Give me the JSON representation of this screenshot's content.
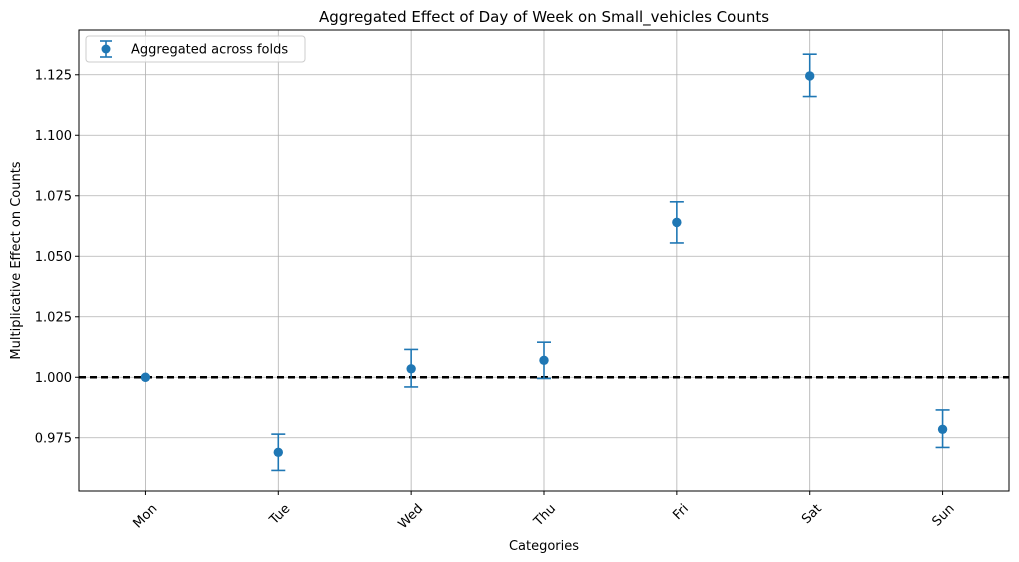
{
  "chart_data": {
    "type": "scatter",
    "title": "Aggregated Effect of Day of Week on Small_vehicles Counts",
    "xlabel": "Categories",
    "ylabel": "Multiplicative Effect on Counts",
    "categories": [
      "Mon",
      "Tue",
      "Wed",
      "Thu",
      "Fri",
      "Sat",
      "Sun"
    ],
    "series": [
      {
        "name": "Aggregated across folds",
        "values": [
          1.0,
          0.969,
          1.0035,
          1.007,
          1.064,
          1.1245,
          0.9785
        ],
        "error_low": [
          1.0,
          0.9615,
          0.996,
          0.9995,
          1.0555,
          1.116,
          0.971
        ],
        "error_high": [
          1.0,
          0.9765,
          1.0115,
          1.0145,
          1.0725,
          1.1335,
          0.9865
        ],
        "color": "#1f77b4"
      }
    ],
    "reference_line": {
      "y": 1.0,
      "style": "dashed",
      "color": "#000000"
    },
    "ylim": [
      0.953,
      1.1435
    ],
    "yticks": [
      0.975,
      1.0,
      1.025,
      1.05,
      1.075,
      1.1,
      1.125
    ],
    "ytick_labels": [
      "0.975",
      "1.000",
      "1.025",
      "1.050",
      "1.075",
      "1.100",
      "1.125"
    ],
    "grid": true,
    "legend_position": "top-left",
    "xtick_rotation": 45
  }
}
